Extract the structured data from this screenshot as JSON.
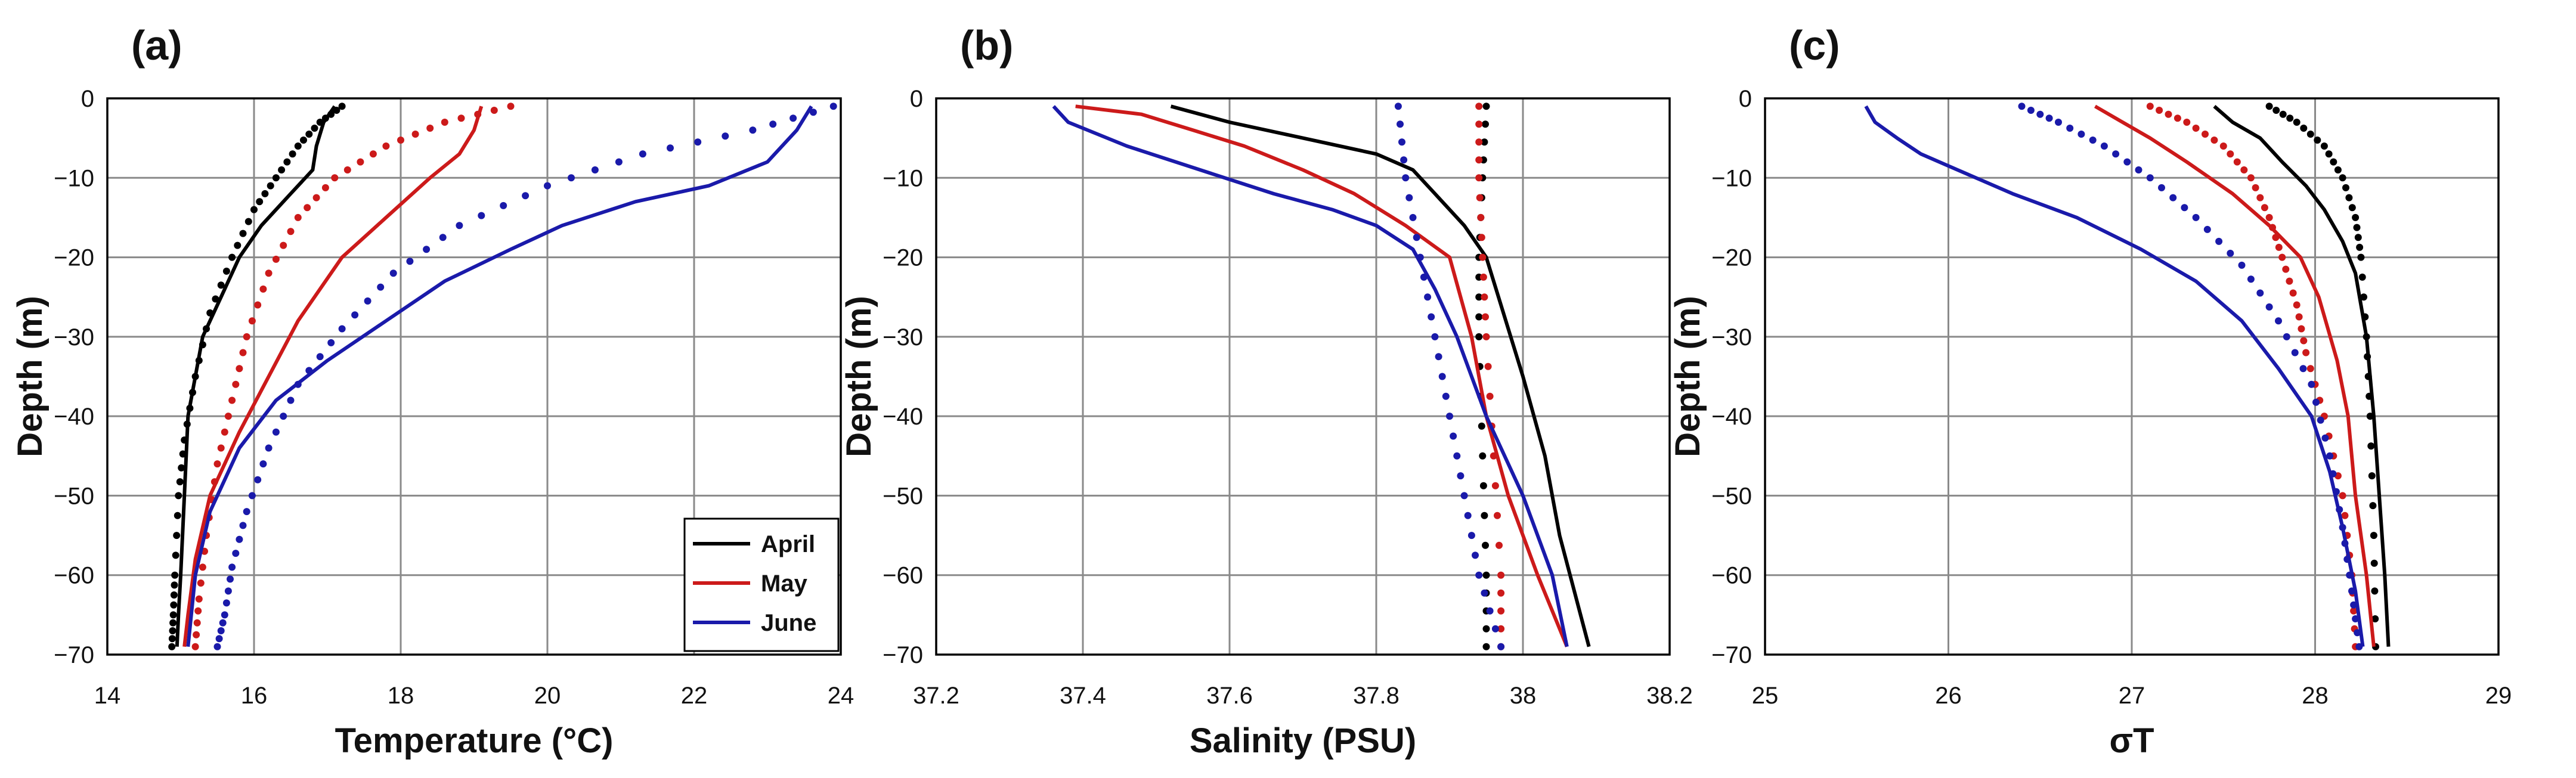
{
  "chart_data": [
    {
      "type": "line",
      "panel_label": "(a)",
      "xlabel": "Temperature (°C)",
      "ylabel": "Depth (m)",
      "xlim": [
        14,
        24
      ],
      "ylim": [
        -70,
        0
      ],
      "xticks": [
        14,
        16,
        18,
        20,
        22,
        24
      ],
      "yticks": [
        0,
        -10,
        -20,
        -30,
        -40,
        -50,
        -60,
        -70
      ],
      "grid": true,
      "legend": {
        "placement": "bottom-right",
        "entries": [
          "April",
          "May",
          "June"
        ]
      },
      "series": [
        {
          "name": "April",
          "style": "solid",
          "x": [
            17.1,
            16.95,
            16.85,
            16.8,
            16.5,
            16.1,
            15.8,
            15.55,
            15.3,
            15.1,
            15.05,
            15.0,
            14.97,
            14.95
          ],
          "y": [
            -1,
            -3,
            -6,
            -9,
            -12,
            -16,
            -20,
            -25,
            -30,
            -40,
            -50,
            -60,
            -65,
            -69
          ]
        },
        {
          "name": "April (dotted)",
          "style": "dotted",
          "x": [
            17.2,
            16.9,
            16.6,
            16.3,
            16.0,
            15.7,
            15.4,
            15.2,
            15.05,
            14.97,
            14.92,
            14.9,
            14.88
          ],
          "y": [
            -1,
            -3,
            -6,
            -10,
            -14,
            -20,
            -27,
            -35,
            -43,
            -50,
            -60,
            -65,
            -69
          ]
        },
        {
          "name": "May",
          "style": "solid",
          "x": [
            19.1,
            19.0,
            18.8,
            18.4,
            17.8,
            17.2,
            16.6,
            16.2,
            15.8,
            15.4,
            15.2,
            15.1,
            15.05
          ],
          "y": [
            -1,
            -4,
            -7,
            -10,
            -15,
            -20,
            -28,
            -35,
            -42,
            -50,
            -58,
            -65,
            -69
          ]
        },
        {
          "name": "May (dotted)",
          "style": "dotted",
          "x": [
            19.5,
            18.6,
            17.8,
            17.1,
            16.6,
            16.2,
            15.9,
            15.7,
            15.5,
            15.35,
            15.25,
            15.2
          ],
          "y": [
            -1,
            -3,
            -6,
            -10,
            -15,
            -22,
            -30,
            -38,
            -46,
            -55,
            -63,
            -69
          ]
        },
        {
          "name": "June",
          "style": "solid",
          "x": [
            23.6,
            23.4,
            23.0,
            22.2,
            21.2,
            20.2,
            19.5,
            18.6,
            17.8,
            17.0,
            16.3,
            15.8,
            15.4,
            15.2,
            15.1
          ],
          "y": [
            -1,
            -4,
            -8,
            -11,
            -13,
            -16,
            -19,
            -23,
            -28,
            -33,
            -38,
            -44,
            -52,
            -60,
            -69
          ]
        },
        {
          "name": "June (dotted)",
          "style": "dotted",
          "x": [
            23.9,
            22.8,
            21.3,
            20.0,
            18.8,
            17.9,
            17.2,
            16.6,
            16.2,
            15.9,
            15.7,
            15.6,
            15.5
          ],
          "y": [
            -1,
            -4,
            -7,
            -11,
            -16,
            -22,
            -29,
            -36,
            -44,
            -52,
            -59,
            -65,
            -69
          ]
        }
      ]
    },
    {
      "type": "line",
      "panel_label": "(b)",
      "xlabel": "Salinity (PSU)",
      "ylabel": "Depth (m)",
      "xlim": [
        37.2,
        38.2
      ],
      "ylim": [
        -70,
        0
      ],
      "xticks": [
        37.2,
        37.4,
        37.6,
        37.8,
        38,
        38.2
      ],
      "yticks": [
        0,
        -10,
        -20,
        -30,
        -40,
        -50,
        -60,
        -70
      ],
      "grid": true,
      "series": [
        {
          "name": "April",
          "style": "solid",
          "x": [
            37.52,
            37.6,
            37.7,
            37.8,
            37.85,
            37.88,
            37.92,
            37.95,
            37.97,
            38.0,
            38.03,
            38.05,
            38.07,
            38.09
          ],
          "y": [
            -1,
            -3,
            -5,
            -7,
            -9,
            -12,
            -16,
            -20,
            -26,
            -35,
            -45,
            -55,
            -62,
            -69
          ]
        },
        {
          "name": "April (dotted)",
          "style": "dotted",
          "x": [
            37.95,
            37.945,
            37.94,
            37.94,
            37.945,
            37.95,
            37.95
          ],
          "y": [
            -1,
            -10,
            -20,
            -30,
            -45,
            -60,
            -69
          ]
        },
        {
          "name": "May",
          "style": "solid",
          "x": [
            37.39,
            37.48,
            37.55,
            37.62,
            37.7,
            37.77,
            37.84,
            37.9,
            37.93,
            37.95,
            37.98,
            38.02,
            38.06
          ],
          "y": [
            -1,
            -2,
            -4,
            -6,
            -9,
            -12,
            -16,
            -20,
            -30,
            -40,
            -50,
            -60,
            -69
          ]
        },
        {
          "name": "May (dotted)",
          "style": "dotted",
          "x": [
            37.94,
            37.94,
            37.945,
            37.95,
            37.96,
            37.97,
            37.97
          ],
          "y": [
            -1,
            -10,
            -20,
            -30,
            -45,
            -60,
            -69
          ]
        },
        {
          "name": "June",
          "style": "solid",
          "x": [
            37.36,
            37.38,
            37.46,
            37.56,
            37.66,
            37.74,
            37.8,
            37.85,
            37.88,
            37.91,
            37.95,
            38.0,
            38.04,
            38.06
          ],
          "y": [
            -1,
            -3,
            -6,
            -9,
            -12,
            -14,
            -16,
            -19,
            -24,
            -30,
            -40,
            -50,
            -60,
            -69
          ]
        },
        {
          "name": "June (dotted)",
          "style": "dotted",
          "x": [
            37.83,
            37.84,
            37.86,
            37.88,
            37.9,
            37.92,
            37.94,
            37.97
          ],
          "y": [
            -1,
            -10,
            -20,
            -30,
            -40,
            -50,
            -60,
            -69
          ]
        }
      ]
    },
    {
      "type": "line",
      "panel_label": "(c)",
      "xlabel": "σT",
      "ylabel": "Depth (m)",
      "xlim": [
        25,
        29
      ],
      "ylim": [
        -70,
        0
      ],
      "xticks": [
        25,
        26,
        27,
        28,
        29
      ],
      "yticks": [
        0,
        -10,
        -20,
        -30,
        -40,
        -50,
        -60,
        -70
      ],
      "grid": true,
      "series": [
        {
          "name": "April",
          "style": "solid",
          "x": [
            27.45,
            27.55,
            27.7,
            27.82,
            27.95,
            28.05,
            28.15,
            28.22,
            28.28,
            28.32,
            28.35,
            28.38,
            28.4
          ],
          "y": [
            -1,
            -3,
            -5,
            -8,
            -11,
            -14,
            -18,
            -22,
            -30,
            -40,
            -50,
            -60,
            -69
          ]
        },
        {
          "name": "April (dotted)",
          "style": "dotted",
          "x": [
            27.75,
            27.9,
            28.05,
            28.15,
            28.22,
            28.25,
            28.28,
            28.3,
            28.32,
            28.33
          ],
          "y": [
            -1,
            -3,
            -6,
            -10,
            -15,
            -20,
            -30,
            -40,
            -55,
            -69
          ]
        },
        {
          "name": "May",
          "style": "solid",
          "x": [
            26.8,
            26.95,
            27.1,
            27.3,
            27.55,
            27.75,
            27.92,
            28.02,
            28.12,
            28.18,
            28.22,
            28.28,
            28.32
          ],
          "y": [
            -1,
            -3,
            -5,
            -8,
            -12,
            -16,
            -20,
            -25,
            -33,
            -40,
            -50,
            -60,
            -69
          ]
        },
        {
          "name": "May (dotted)",
          "style": "dotted",
          "x": [
            27.1,
            27.3,
            27.5,
            27.65,
            27.75,
            27.82,
            27.9,
            27.95,
            28.05,
            28.15,
            28.2,
            28.22
          ],
          "y": [
            -1,
            -3,
            -6,
            -10,
            -15,
            -20,
            -26,
            -32,
            -40,
            -50,
            -60,
            -69
          ]
        },
        {
          "name": "June",
          "style": "solid",
          "x": [
            25.55,
            25.6,
            25.72,
            25.85,
            26.05,
            26.35,
            26.7,
            27.05,
            27.35,
            27.6,
            27.8,
            27.98,
            28.08,
            28.15,
            28.22,
            28.26
          ],
          "y": [
            -1,
            -3,
            -5,
            -7,
            -9,
            -12,
            -15,
            -19,
            -23,
            -28,
            -34,
            -40,
            -47,
            -54,
            -62,
            -69
          ]
        },
        {
          "name": "June (dotted)",
          "style": "dotted",
          "x": [
            26.4,
            26.6,
            26.85,
            27.1,
            27.35,
            27.6,
            27.8,
            27.98,
            28.08,
            28.15,
            28.2,
            28.24
          ],
          "y": [
            -1,
            -3,
            -6,
            -10,
            -15,
            -21,
            -28,
            -36,
            -45,
            -54,
            -62,
            -69
          ]
        }
      ]
    }
  ],
  "colors": {
    "April": "#000000",
    "May": "#cc1a1a",
    "June": "#1a1aaa",
    "grid": "#8a8a8a",
    "frame": "#000000"
  }
}
